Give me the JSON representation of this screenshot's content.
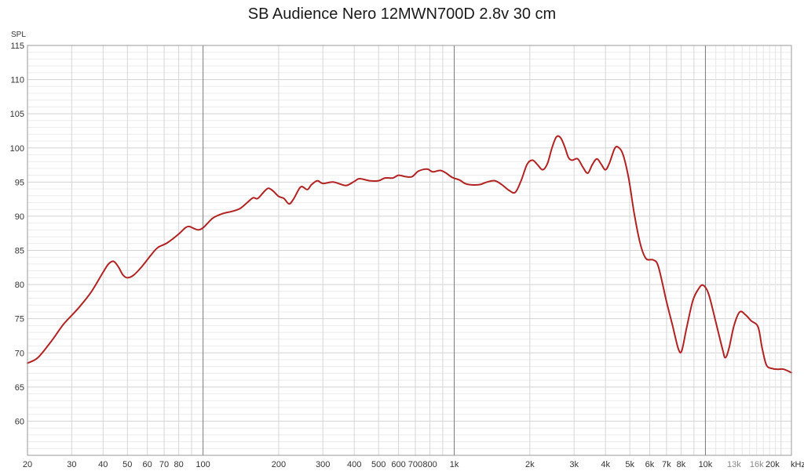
{
  "chart_data": {
    "type": "line",
    "title": "SB Audience Nero 12MWN700D 2.8v 30 cm",
    "ylabel": "SPL",
    "xlabel": "",
    "x_scale": "log",
    "x_unit_label": "kHz",
    "xlim": [
      20,
      22000
    ],
    "ylim": [
      55,
      115
    ],
    "grid": true,
    "y_ticks": [
      60,
      65,
      70,
      75,
      80,
      85,
      90,
      95,
      100,
      105,
      110,
      115
    ],
    "x_ticks": [
      {
        "value": 20,
        "label": "20"
      },
      {
        "value": 30,
        "label": "30"
      },
      {
        "value": 40,
        "label": "40"
      },
      {
        "value": 50,
        "label": "50"
      },
      {
        "value": 60,
        "label": "60"
      },
      {
        "value": 70,
        "label": "70"
      },
      {
        "value": 80,
        "label": "80"
      },
      {
        "value": 100,
        "label": "100"
      },
      {
        "value": 200,
        "label": "200"
      },
      {
        "value": 300,
        "label": "300"
      },
      {
        "value": 400,
        "label": "400"
      },
      {
        "value": 500,
        "label": "500"
      },
      {
        "value": 600,
        "label": "600"
      },
      {
        "value": 700,
        "label": "700"
      },
      {
        "value": 800,
        "label": "800"
      },
      {
        "value": 1000,
        "label": "1k"
      },
      {
        "value": 2000,
        "label": "2k"
      },
      {
        "value": 3000,
        "label": "3k"
      },
      {
        "value": 4000,
        "label": "4k"
      },
      {
        "value": 5000,
        "label": "5k"
      },
      {
        "value": 6000,
        "label": "6k"
      },
      {
        "value": 7000,
        "label": "7k"
      },
      {
        "value": 8000,
        "label": "8k"
      },
      {
        "value": 10000,
        "label": "10k"
      },
      {
        "value": 13000,
        "label": "13k",
        "minor": true
      },
      {
        "value": 16000,
        "label": "16k",
        "minor": true
      },
      {
        "value": 20000,
        "label": "20k"
      }
    ],
    "series": [
      {
        "color": "#b22222",
        "points": [
          [
            20,
            68.5
          ],
          [
            22,
            69.3
          ],
          [
            25,
            71.8
          ],
          [
            28,
            74.3
          ],
          [
            32,
            76.6
          ],
          [
            36,
            79.0
          ],
          [
            40,
            81.8
          ],
          [
            42,
            83.0
          ],
          [
            44,
            83.4
          ],
          [
            46,
            82.6
          ],
          [
            48,
            81.4
          ],
          [
            50,
            81.0
          ],
          [
            53,
            81.4
          ],
          [
            57,
            82.6
          ],
          [
            62,
            84.3
          ],
          [
            66,
            85.4
          ],
          [
            72,
            86.1
          ],
          [
            80,
            87.4
          ],
          [
            85,
            88.3
          ],
          [
            88,
            88.5
          ],
          [
            92,
            88.2
          ],
          [
            96,
            88.0
          ],
          [
            100,
            88.3
          ],
          [
            105,
            89.1
          ],
          [
            110,
            89.8
          ],
          [
            120,
            90.4
          ],
          [
            130,
            90.7
          ],
          [
            140,
            91.1
          ],
          [
            150,
            92.0
          ],
          [
            158,
            92.7
          ],
          [
            165,
            92.6
          ],
          [
            175,
            93.6
          ],
          [
            182,
            94.1
          ],
          [
            190,
            93.7
          ],
          [
            200,
            92.9
          ],
          [
            210,
            92.6
          ],
          [
            220,
            91.8
          ],
          [
            230,
            92.6
          ],
          [
            245,
            94.3
          ],
          [
            260,
            93.9
          ],
          [
            270,
            94.6
          ],
          [
            285,
            95.2
          ],
          [
            300,
            94.8
          ],
          [
            330,
            95.0
          ],
          [
            370,
            94.5
          ],
          [
            400,
            95.1
          ],
          [
            420,
            95.5
          ],
          [
            460,
            95.2
          ],
          [
            500,
            95.2
          ],
          [
            530,
            95.6
          ],
          [
            570,
            95.6
          ],
          [
            600,
            96.0
          ],
          [
            640,
            95.8
          ],
          [
            680,
            95.8
          ],
          [
            720,
            96.6
          ],
          [
            780,
            96.9
          ],
          [
            820,
            96.5
          ],
          [
            880,
            96.7
          ],
          [
            930,
            96.3
          ],
          [
            980,
            95.7
          ],
          [
            1050,
            95.3
          ],
          [
            1120,
            94.7
          ],
          [
            1250,
            94.6
          ],
          [
            1350,
            95.0
          ],
          [
            1450,
            95.2
          ],
          [
            1550,
            94.6
          ],
          [
            1650,
            93.8
          ],
          [
            1750,
            93.5
          ],
          [
            1850,
            95.3
          ],
          [
            1950,
            97.6
          ],
          [
            2050,
            98.2
          ],
          [
            2150,
            97.5
          ],
          [
            2250,
            96.8
          ],
          [
            2350,
            97.7
          ],
          [
            2450,
            100.0
          ],
          [
            2550,
            101.6
          ],
          [
            2650,
            101.5
          ],
          [
            2750,
            100.2
          ],
          [
            2850,
            98.6
          ],
          [
            2950,
            98.2
          ],
          [
            3100,
            98.4
          ],
          [
            3250,
            97.2
          ],
          [
            3400,
            96.3
          ],
          [
            3550,
            97.6
          ],
          [
            3700,
            98.4
          ],
          [
            3850,
            97.6
          ],
          [
            4000,
            96.8
          ],
          [
            4150,
            97.8
          ],
          [
            4350,
            99.9
          ],
          [
            4500,
            100.1
          ],
          [
            4700,
            99.0
          ],
          [
            4950,
            95.5
          ],
          [
            5200,
            90.5
          ],
          [
            5500,
            86.0
          ],
          [
            5800,
            83.8
          ],
          [
            6200,
            83.6
          ],
          [
            6500,
            82.6
          ],
          [
            7000,
            77.5
          ],
          [
            7400,
            74.0
          ],
          [
            7800,
            70.6
          ],
          [
            8050,
            70.3
          ],
          [
            8400,
            73.5
          ],
          [
            8900,
            77.6
          ],
          [
            9400,
            79.4
          ],
          [
            9800,
            79.9
          ],
          [
            10300,
            78.6
          ],
          [
            11000,
            74.5
          ],
          [
            11700,
            70.5
          ],
          [
            12000,
            69.3
          ],
          [
            12400,
            70.6
          ],
          [
            13000,
            74.0
          ],
          [
            13700,
            76.0
          ],
          [
            14500,
            75.5
          ],
          [
            15200,
            74.7
          ],
          [
            16200,
            73.8
          ],
          [
            16800,
            70.8
          ],
          [
            17500,
            68.2
          ],
          [
            18500,
            67.7
          ],
          [
            19500,
            67.6
          ],
          [
            20500,
            67.6
          ],
          [
            22000,
            67.1
          ]
        ]
      }
    ]
  }
}
